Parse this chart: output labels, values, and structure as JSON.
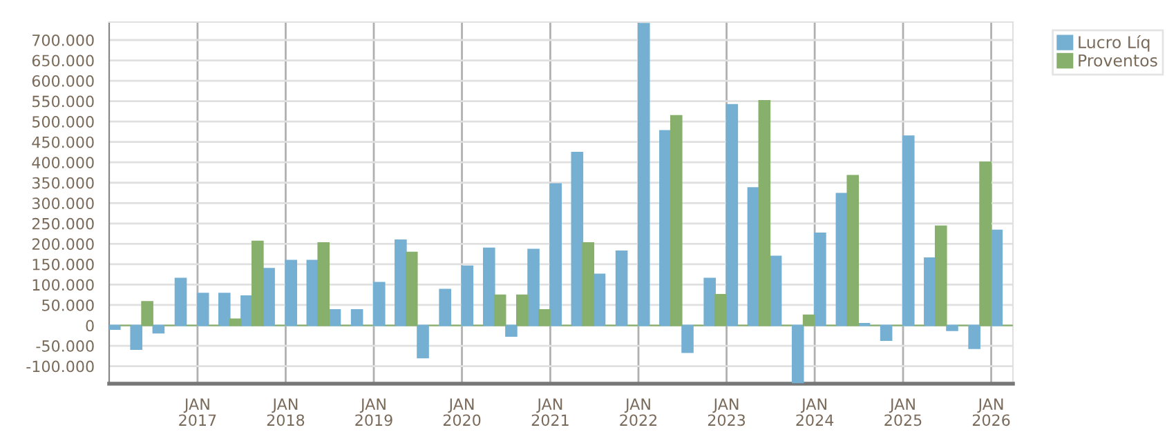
{
  "chart_data": {
    "type": "bar",
    "x": [
      "2016-02-15",
      "2016-05-15",
      "2016-08-15",
      "2016-11-15",
      "2017-02-15",
      "2017-05-15",
      "2017-08-15",
      "2017-11-15",
      "2018-02-15",
      "2018-05-15",
      "2018-08-15",
      "2018-11-15",
      "2019-02-15",
      "2019-05-15",
      "2019-08-15",
      "2019-11-15",
      "2020-02-15",
      "2020-05-15",
      "2020-08-15",
      "2020-11-15",
      "2021-02-15",
      "2021-05-15",
      "2021-08-15",
      "2021-11-15",
      "2022-02-15",
      "2022-05-15",
      "2022-08-15",
      "2022-11-15",
      "2023-02-15",
      "2023-05-15",
      "2023-08-15",
      "2023-11-15",
      "2024-02-15",
      "2024-05-15",
      "2024-08-15",
      "2024-11-15",
      "2025-02-15",
      "2025-05-15",
      "2025-08-15",
      "2025-11-15",
      "2026-02-15"
    ],
    "series": [
      {
        "name": "Lucro Líq",
        "color": "#75b0d3",
        "values": [
          -9000,
          -58000,
          -18000,
          115000,
          78000,
          78000,
          72000,
          139000,
          159000,
          159000,
          38000,
          38000,
          105000,
          209000,
          -79000,
          88000,
          145000,
          189000,
          -26000,
          186000,
          347000,
          424000,
          125000,
          182000,
          740000,
          477000,
          -66000,
          115000,
          541000,
          337000,
          169000,
          -140000,
          226000,
          323000,
          4000,
          -36000,
          464000,
          165000,
          -12000,
          -56000,
          233000
        ]
      },
      {
        "name": "Proventos",
        "color": "#87b06c",
        "values": [
          0,
          58000,
          0,
          0,
          0,
          15000,
          206000,
          0,
          0,
          202000,
          0,
          0,
          0,
          179000,
          0,
          0,
          0,
          74000,
          74000,
          38000,
          0,
          202000,
          0,
          0,
          0,
          514000,
          0,
          75000,
          0,
          551000,
          0,
          25000,
          0,
          367000,
          0,
          0,
          0,
          243000,
          0,
          400000,
          0
        ]
      }
    ],
    "xlim": [
      "2016-01",
      "2026-04"
    ],
    "xticks": [
      {
        "value": "2017-01",
        "label": "JAN\n2017"
      },
      {
        "value": "2018-01",
        "label": "JAN\n2018"
      },
      {
        "value": "2019-01",
        "label": "JAN\n2019"
      },
      {
        "value": "2020-01",
        "label": "JAN\n2020"
      },
      {
        "value": "2021-01",
        "label": "JAN\n2021"
      },
      {
        "value": "2022-01",
        "label": "JAN\n2022"
      },
      {
        "value": "2023-01",
        "label": "JAN\n2023"
      },
      {
        "value": "2024-01",
        "label": "JAN\n2024"
      },
      {
        "value": "2025-01",
        "label": "JAN\n2025"
      },
      {
        "value": "2026-01",
        "label": "JAN\n2026"
      }
    ],
    "ylim": [
      -143000,
      744000
    ],
    "yticks": [
      {
        "value": -100000,
        "label": "-100.000"
      },
      {
        "value": -50000,
        "label": "-50.000"
      },
      0,
      {
        "value": 50000,
        "label": "50.000"
      },
      {
        "value": 100000,
        "label": "100.000"
      },
      {
        "value": 150000,
        "label": "150.000"
      },
      {
        "value": 200000,
        "label": "200.000"
      },
      {
        "value": 250000,
        "label": "250.000"
      },
      {
        "value": 300000,
        "label": "300.000"
      },
      {
        "value": 350000,
        "label": "350.000"
      },
      {
        "value": 400000,
        "label": "400.000"
      },
      {
        "value": 450000,
        "label": "450.000"
      },
      {
        "value": 500000,
        "label": "500.000"
      },
      {
        "value": 550000,
        "label": "550.000"
      },
      {
        "value": 600000,
        "label": "600.000"
      },
      {
        "value": 650000,
        "label": "650.000"
      },
      {
        "value": 700000,
        "label": "700.000"
      }
    ],
    "grid": true,
    "legend": "top right"
  }
}
